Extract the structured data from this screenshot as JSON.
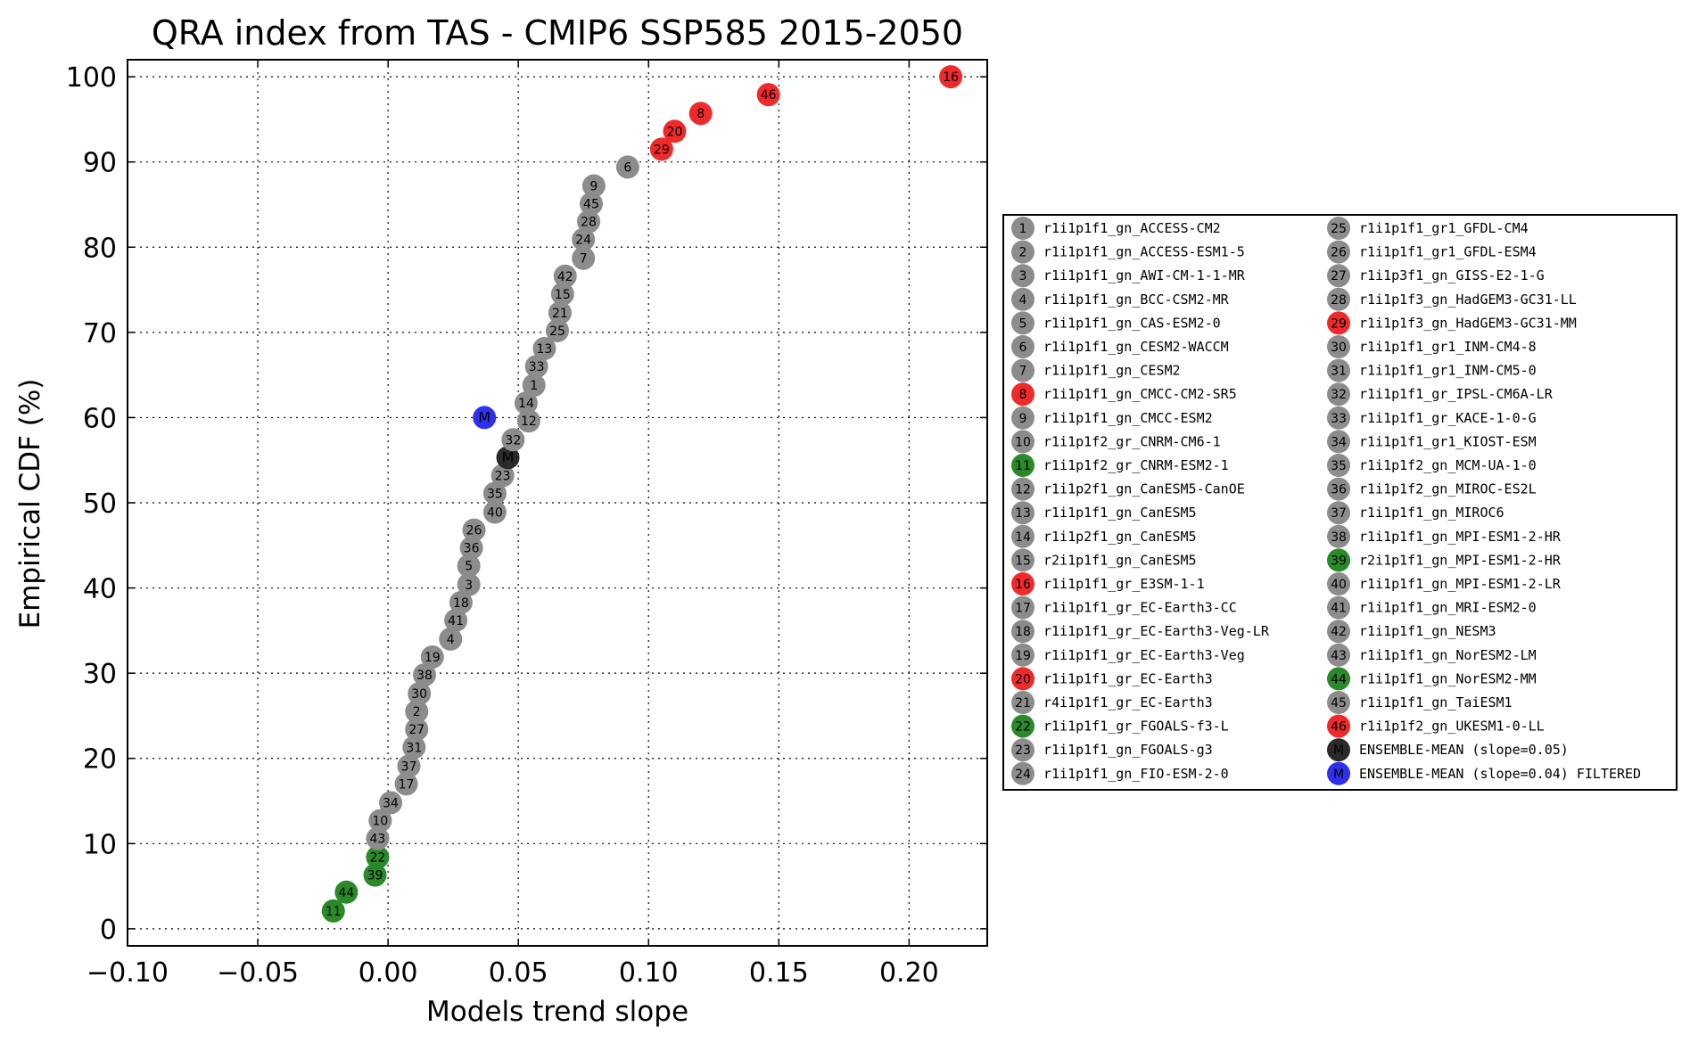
{
  "chart_data": {
    "type": "scatter",
    "title": "QRA index from TAS - CMIP6 SSP585 2015-2050",
    "xlabel": "Models trend slope",
    "ylabel": "Empirical CDF (%)",
    "xlim": [
      -0.1,
      0.23
    ],
    "ylim": [
      -2,
      102
    ],
    "xticks": [
      -0.1,
      -0.05,
      0.0,
      0.05,
      0.1,
      0.15,
      0.2
    ],
    "xtick_labels": [
      "−0.10",
      "−0.05",
      "0.00",
      "0.05",
      "0.10",
      "0.15",
      "0.20"
    ],
    "yticks": [
      0,
      10,
      20,
      30,
      40,
      50,
      60,
      70,
      80,
      90,
      100
    ],
    "ytick_labels": [
      "0",
      "10",
      "20",
      "30",
      "40",
      "50",
      "60",
      "70",
      "80",
      "90",
      "100"
    ],
    "grid": true,
    "legend_location": "right, outside plot",
    "colors": {
      "gray": "#8c8c8c",
      "red": "#ee2a2a",
      "green": "#2a8a2a",
      "black": "#2a2a2a",
      "blue": "#2f2fee"
    },
    "points": [
      {
        "label": "11",
        "x": -0.021,
        "y": 2.1,
        "color": "green"
      },
      {
        "label": "44",
        "x": -0.016,
        "y": 4.3,
        "color": "green"
      },
      {
        "label": "39",
        "x": -0.005,
        "y": 6.3,
        "color": "green"
      },
      {
        "label": "22",
        "x": -0.004,
        "y": 8.4,
        "color": "green"
      },
      {
        "label": "43",
        "x": -0.004,
        "y": 10.6,
        "color": "gray"
      },
      {
        "label": "10",
        "x": -0.003,
        "y": 12.7,
        "color": "gray"
      },
      {
        "label": "34",
        "x": 0.001,
        "y": 14.8,
        "color": "gray"
      },
      {
        "label": "17",
        "x": 0.007,
        "y": 17.0,
        "color": "gray"
      },
      {
        "label": "37",
        "x": 0.008,
        "y": 19.1,
        "color": "gray"
      },
      {
        "label": "31",
        "x": 0.01,
        "y": 21.3,
        "color": "gray"
      },
      {
        "label": "27",
        "x": 0.011,
        "y": 23.4,
        "color": "gray"
      },
      {
        "label": "2",
        "x": 0.011,
        "y": 25.5,
        "color": "gray"
      },
      {
        "label": "30",
        "x": 0.012,
        "y": 27.6,
        "color": "gray"
      },
      {
        "label": "38",
        "x": 0.014,
        "y": 29.8,
        "color": "gray"
      },
      {
        "label": "19",
        "x": 0.017,
        "y": 31.9,
        "color": "gray"
      },
      {
        "label": "4",
        "x": 0.024,
        "y": 34.0,
        "color": "gray"
      },
      {
        "label": "41",
        "x": 0.026,
        "y": 36.2,
        "color": "gray"
      },
      {
        "label": "18",
        "x": 0.028,
        "y": 38.3,
        "color": "gray"
      },
      {
        "label": "3",
        "x": 0.031,
        "y": 40.4,
        "color": "gray"
      },
      {
        "label": "5",
        "x": 0.031,
        "y": 42.6,
        "color": "gray"
      },
      {
        "label": "36",
        "x": 0.032,
        "y": 44.7,
        "color": "gray"
      },
      {
        "label": "26",
        "x": 0.033,
        "y": 46.8,
        "color": "gray"
      },
      {
        "label": "40",
        "x": 0.041,
        "y": 48.9,
        "color": "gray"
      },
      {
        "label": "35",
        "x": 0.041,
        "y": 51.1,
        "color": "gray"
      },
      {
        "label": "23",
        "x": 0.044,
        "y": 53.2,
        "color": "gray"
      },
      {
        "label": "M",
        "x": 0.046,
        "y": 55.3,
        "color": "black",
        "text_color": "#ffffff"
      },
      {
        "label": "32",
        "x": 0.048,
        "y": 57.4,
        "color": "gray"
      },
      {
        "label": "12",
        "x": 0.054,
        "y": 59.6,
        "color": "gray"
      },
      {
        "label": "14",
        "x": 0.053,
        "y": 61.7,
        "color": "gray"
      },
      {
        "label": "M",
        "x": 0.037,
        "y": 60.0,
        "color": "blue",
        "text_color": "#ffffff"
      },
      {
        "label": "1",
        "x": 0.056,
        "y": 63.8,
        "color": "gray"
      },
      {
        "label": "33",
        "x": 0.057,
        "y": 66.0,
        "color": "gray"
      },
      {
        "label": "13",
        "x": 0.06,
        "y": 68.1,
        "color": "gray"
      },
      {
        "label": "25",
        "x": 0.065,
        "y": 70.2,
        "color": "gray"
      },
      {
        "label": "21",
        "x": 0.066,
        "y": 72.3,
        "color": "gray"
      },
      {
        "label": "15",
        "x": 0.067,
        "y": 74.5,
        "color": "gray"
      },
      {
        "label": "42",
        "x": 0.068,
        "y": 76.6,
        "color": "gray"
      },
      {
        "label": "7",
        "x": 0.075,
        "y": 78.7,
        "color": "gray"
      },
      {
        "label": "24",
        "x": 0.075,
        "y": 80.9,
        "color": "gray"
      },
      {
        "label": "28",
        "x": 0.077,
        "y": 83.0,
        "color": "gray"
      },
      {
        "label": "45",
        "x": 0.078,
        "y": 85.1,
        "color": "gray"
      },
      {
        "label": "9",
        "x": 0.079,
        "y": 87.2,
        "color": "gray"
      },
      {
        "label": "6",
        "x": 0.092,
        "y": 89.4,
        "color": "gray"
      },
      {
        "label": "29",
        "x": 0.105,
        "y": 91.5,
        "color": "red"
      },
      {
        "label": "20",
        "x": 0.11,
        "y": 93.6,
        "color": "red"
      },
      {
        "label": "8",
        "x": 0.12,
        "y": 95.7,
        "color": "red"
      },
      {
        "label": "46",
        "x": 0.146,
        "y": 97.9,
        "color": "red"
      },
      {
        "label": "16",
        "x": 0.216,
        "y": 100.0,
        "color": "red"
      }
    ],
    "legend": [
      {
        "marker": "1",
        "color": "gray",
        "text": "r1i1p1f1_gn_ACCESS-CM2"
      },
      {
        "marker": "2",
        "color": "gray",
        "text": "r1i1p1f1_gn_ACCESS-ESM1-5"
      },
      {
        "marker": "3",
        "color": "gray",
        "text": "r1i1p1f1_gn_AWI-CM-1-1-MR"
      },
      {
        "marker": "4",
        "color": "gray",
        "text": "r1i1p1f1_gn_BCC-CSM2-MR"
      },
      {
        "marker": "5",
        "color": "gray",
        "text": "r1i1p1f1_gn_CAS-ESM2-0"
      },
      {
        "marker": "6",
        "color": "gray",
        "text": "r1i1p1f1_gn_CESM2-WACCM"
      },
      {
        "marker": "7",
        "color": "gray",
        "text": "r1i1p1f1_gn_CESM2"
      },
      {
        "marker": "8",
        "color": "red",
        "text": "r1i1p1f1_gn_CMCC-CM2-SR5"
      },
      {
        "marker": "9",
        "color": "gray",
        "text": "r1i1p1f1_gn_CMCC-ESM2"
      },
      {
        "marker": "10",
        "color": "gray",
        "text": "r1i1p1f2_gr_CNRM-CM6-1"
      },
      {
        "marker": "11",
        "color": "green",
        "text": "r1i1p1f2_gr_CNRM-ESM2-1"
      },
      {
        "marker": "12",
        "color": "gray",
        "text": "r1i1p2f1_gn_CanESM5-CanOE"
      },
      {
        "marker": "13",
        "color": "gray",
        "text": "r1i1p1f1_gn_CanESM5"
      },
      {
        "marker": "14",
        "color": "gray",
        "text": "r1i1p2f1_gn_CanESM5"
      },
      {
        "marker": "15",
        "color": "gray",
        "text": "r2i1p1f1_gn_CanESM5"
      },
      {
        "marker": "16",
        "color": "red",
        "text": "r1i1p1f1_gr_E3SM-1-1"
      },
      {
        "marker": "17",
        "color": "gray",
        "text": "r1i1p1f1_gr_EC-Earth3-CC"
      },
      {
        "marker": "18",
        "color": "gray",
        "text": "r1i1p1f1_gr_EC-Earth3-Veg-LR"
      },
      {
        "marker": "19",
        "color": "gray",
        "text": "r1i1p1f1_gr_EC-Earth3-Veg"
      },
      {
        "marker": "20",
        "color": "red",
        "text": "r1i1p1f1_gr_EC-Earth3"
      },
      {
        "marker": "21",
        "color": "gray",
        "text": "r4i1p1f1_gr_EC-Earth3"
      },
      {
        "marker": "22",
        "color": "green",
        "text": "r1i1p1f1_gr_FGOALS-f3-L"
      },
      {
        "marker": "23",
        "color": "gray",
        "text": "r1i1p1f1_gn_FGOALS-g3"
      },
      {
        "marker": "24",
        "color": "gray",
        "text": "r1i1p1f1_gn_FIO-ESM-2-0"
      },
      {
        "marker": "25",
        "color": "gray",
        "text": "r1i1p1f1_gr1_GFDL-CM4"
      },
      {
        "marker": "26",
        "color": "gray",
        "text": "r1i1p1f1_gr1_GFDL-ESM4"
      },
      {
        "marker": "27",
        "color": "gray",
        "text": "r1i1p3f1_gn_GISS-E2-1-G"
      },
      {
        "marker": "28",
        "color": "gray",
        "text": "r1i1p1f3_gn_HadGEM3-GC31-LL"
      },
      {
        "marker": "29",
        "color": "red",
        "text": "r1i1p1f3_gn_HadGEM3-GC31-MM"
      },
      {
        "marker": "30",
        "color": "gray",
        "text": "r1i1p1f1_gr1_INM-CM4-8"
      },
      {
        "marker": "31",
        "color": "gray",
        "text": "r1i1p1f1_gr1_INM-CM5-0"
      },
      {
        "marker": "32",
        "color": "gray",
        "text": "r1i1p1f1_gr_IPSL-CM6A-LR"
      },
      {
        "marker": "33",
        "color": "gray",
        "text": "r1i1p1f1_gr_KACE-1-0-G"
      },
      {
        "marker": "34",
        "color": "gray",
        "text": "r1i1p1f1_gr1_KIOST-ESM"
      },
      {
        "marker": "35",
        "color": "gray",
        "text": "r1i1p1f2_gn_MCM-UA-1-0"
      },
      {
        "marker": "36",
        "color": "gray",
        "text": "r1i1p1f2_gn_MIROC-ES2L"
      },
      {
        "marker": "37",
        "color": "gray",
        "text": "r1i1p1f1_gn_MIROC6"
      },
      {
        "marker": "38",
        "color": "gray",
        "text": "r1i1p1f1_gn_MPI-ESM1-2-HR"
      },
      {
        "marker": "39",
        "color": "green",
        "text": "r2i1p1f1_gn_MPI-ESM1-2-HR"
      },
      {
        "marker": "40",
        "color": "gray",
        "text": "r1i1p1f1_gn_MPI-ESM1-2-LR"
      },
      {
        "marker": "41",
        "color": "gray",
        "text": "r1i1p1f1_gn_MRI-ESM2-0"
      },
      {
        "marker": "42",
        "color": "gray",
        "text": "r1i1p1f1_gn_NESM3"
      },
      {
        "marker": "43",
        "color": "gray",
        "text": "r1i1p1f1_gn_NorESM2-LM"
      },
      {
        "marker": "44",
        "color": "green",
        "text": "r1i1p1f1_gn_NorESM2-MM"
      },
      {
        "marker": "45",
        "color": "gray",
        "text": "r1i1p1f1_gn_TaiESM1"
      },
      {
        "marker": "46",
        "color": "red",
        "text": "r1i1p1f2_gn_UKESM1-0-LL"
      },
      {
        "marker": "M",
        "color": "black",
        "text": "ENSEMBLE-MEAN (slope=0.05)"
      },
      {
        "marker": "M",
        "color": "blue",
        "text": "ENSEMBLE-MEAN (slope=0.04) FILTERED"
      }
    ]
  }
}
